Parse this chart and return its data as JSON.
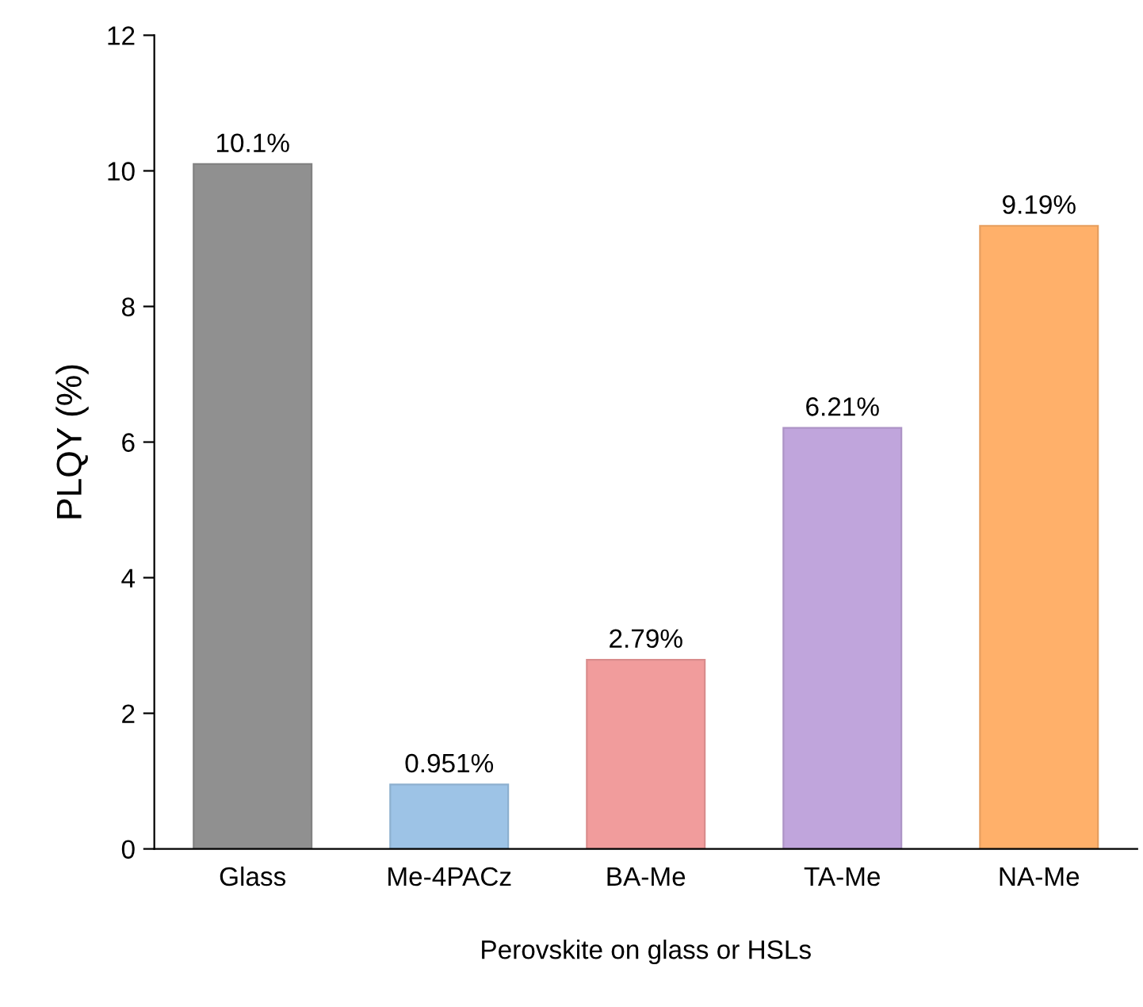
{
  "chart_data": {
    "type": "bar",
    "xlabel": "Perovskite on glass or HSLs",
    "ylabel": "PLQY (%)",
    "categories": [
      "Glass",
      "Me-4PACz",
      "BA-Me",
      "TA-Me",
      "NA-Me"
    ],
    "values": [
      10.1,
      0.951,
      2.79,
      6.21,
      9.19
    ],
    "colors": [
      "#909090",
      "#9dc3e6",
      "#f19c9c",
      "#c0a5dc",
      "#ffb06a"
    ],
    "value_labels": [
      "10.1%",
      "0.951%",
      "2.79%",
      "6.21%",
      "9.19%"
    ],
    "ylim": [
      0,
      12
    ],
    "yticks": [
      0,
      2,
      4,
      6,
      8,
      10,
      12
    ],
    "grid": false
  }
}
